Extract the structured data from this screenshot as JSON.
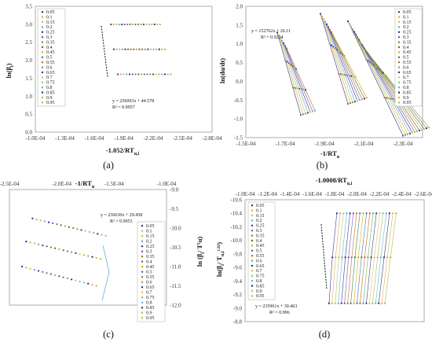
{
  "series_colors": [
    "#2b2b8f",
    "#e6a23c",
    "#a9c94a",
    "#5aa5d6",
    "#2b2b8f",
    "#7a4aa0",
    "#b36a2a",
    "#3a7d3a",
    "#d9a400",
    "#2c6ea6",
    "#c45c1c",
    "#6aa84f",
    "#1f3f7a",
    "#e8b84a",
    "#8fbf5a",
    "#5fb0d8",
    "#1e2e5e",
    "#f0a040",
    "#9abf3a"
  ],
  "panels": [
    {
      "label": "(a)",
      "xlabel": "-1.052/RT",
      "xlabel_sub": "α,i",
      "ylabel": "ln(β",
      "ylabel_sub": "i",
      "ylabel_end": ")",
      "equation": "y = 256093x + 44.578",
      "r2": "R² = 0.9957",
      "legend": [
        "0.05",
        "0.1",
        "0.15",
        "0.2",
        "0.25",
        "0.3",
        "0.35",
        "0.4",
        "0.45",
        "0.5",
        "0.55",
        "0.6",
        "0.65",
        "0.7",
        "0.75",
        "0.8",
        "0.85",
        "0.9",
        "0.95"
      ]
    },
    {
      "label": "(b)",
      "xlabel": "-1/RT",
      "xlabel_sub": "α",
      "ylabel": "ln(dα/dt)",
      "ylabel_sub": "",
      "ylabel_end": "",
      "equation": "y = 152762x + 26.11",
      "r2": "R² = 0.9224",
      "legend": [
        "0.05",
        "0.1",
        "0.15",
        "0.2",
        "0.25",
        "0.3",
        "0.35",
        "0.4",
        "0.45",
        "0.5",
        "0.55",
        "0.6",
        "0.65",
        "0.7",
        "0.75",
        "0.8",
        "0.85",
        "0.9",
        "0.95"
      ]
    },
    {
      "label": "(c)",
      "xlabel": "-1/RT",
      "xlabel_sub": "α",
      "ylabel": "ln (β",
      "ylabel_sub": "i",
      "ylabel_end": "/ T²α)",
      "equation": "y = 236630x + 29.458",
      "r2": "R² = 0.9953",
      "legend": [
        "0.05",
        "0.1",
        "0.15",
        "0.2",
        "0.25",
        "0.3",
        "0.35",
        "0.4",
        "0.45",
        "0.5",
        "0.55",
        "0.6",
        "0.65",
        "0.7",
        "0.75",
        "0.8",
        "0.85",
        "0.9",
        "0.95"
      ]
    },
    {
      "label": "(d)",
      "xlabel": "-1.0008/RT",
      "xlabel_sub": "α,i",
      "ylabel": "ln(β",
      "ylabel_sub": "i",
      "ylabel_end": "/ T",
      "ylabel_tail": "α,i",
      "ylabel_tail_sup": "1.92",
      "ylabel_close": ")",
      "equation": "y = 235961x + 30.463",
      "r2": "R² = 0.996",
      "legend": [
        "0.05",
        "0.1",
        "0.15",
        "0.2",
        "0.25",
        "0.3",
        "0.35",
        "0.4",
        "0.45",
        "0.5",
        "0.55",
        "0.6",
        "0.65",
        "0.7",
        "0.75",
        "0.8",
        "0.85",
        "0.9",
        "0.95"
      ]
    }
  ],
  "chart_data": [
    {
      "type": "scatter",
      "title": "",
      "xlabel": "-1.052/RTα,i",
      "ylabel": "ln(βi)",
      "xlim": [
        -0.0001,
        -0.00028
      ],
      "ylim": [
        0,
        3.5
      ],
      "x_ticks": [
        "-1.0E-04",
        "-1.3E-04",
        "-1.6E-04",
        "-1.9E-04",
        "-2.2E-04",
        "-2.5E-04",
        "-2.8E-04"
      ],
      "y_ticks": [
        "0.0",
        "0.5",
        "1.0",
        "1.5",
        "2.0",
        "2.5",
        "3.0",
        "3.5"
      ],
      "rows": [
        {
          "y": 2.996,
          "x_range": [
            -0.000177,
            -0.000227
          ]
        },
        {
          "y": 2.303,
          "x_range": [
            -0.00018,
            -0.000232
          ]
        },
        {
          "y": 1.609,
          "x_range": [
            -0.000184,
            -0.000238
          ]
        }
      ],
      "fit": {
        "equation": "y = 256093x + 44.578",
        "r2": 0.9957,
        "x_range": [
          -0.000177,
          -0.000184
        ]
      },
      "legend_position": "top-left"
    },
    {
      "type": "scatter",
      "title": "",
      "xlabel": "-1/RTα",
      "ylabel": "ln(dα/dt)",
      "xlim": [
        -0.00015,
        -0.00024
      ],
      "ylim": [
        -1.5,
        2.0
      ],
      "x_ticks": [
        "-1.5E-04",
        "-1.7E-04",
        "-1.9E-04",
        "-2.1E-04",
        "-2.3E-04"
      ],
      "y_ticks": [
        "-1.5",
        "-1.0",
        "-0.5",
        "0.0",
        "0.5",
        "1.0",
        "1.5",
        "2.0"
      ],
      "points_summary": {
        "x_range": [
          -0.000165,
          -0.000235
        ],
        "y_range": [
          -1.5,
          1.8
        ]
      },
      "fit": {
        "equation": "y = 152762x + 26.11",
        "r2": 0.9224
      },
      "legend_position": "top-right"
    },
    {
      "type": "scatter",
      "title": "",
      "xlabel": "-1/RTα",
      "ylabel": "ln (βi / T²α)",
      "xlim": [
        -0.00025,
        -0.0001
      ],
      "ylim": [
        -12.0,
        -9.0
      ],
      "x_ticks": [
        "-2.5E-04",
        "-2.0E-04",
        "-1.5E-04",
        "-1.0E-04"
      ],
      "y_ticks": [
        "-9.0",
        "-9.5",
        "-10.0",
        "-10.5",
        "-11.0",
        "-11.5",
        "-12.0"
      ],
      "rows": [
        {
          "y_range": [
            -9.75,
            -10.2
          ],
          "x_range": [
            -0.000228,
            -0.000158
          ]
        },
        {
          "y_range": [
            -10.35,
            -10.8
          ],
          "x_range": [
            -0.000234,
            -0.000163
          ]
        },
        {
          "y_range": [
            -11.0,
            -11.5
          ],
          "x_range": [
            -0.000238,
            -0.000167
          ]
        }
      ],
      "fit": {
        "equation": "y = 236630x + 29.458",
        "r2": 0.9953
      },
      "legend_position": "right"
    },
    {
      "type": "scatter",
      "title": "",
      "xlabel": "-1.0008/RTα,i",
      "ylabel": "ln(βi / Tα,i^1.92)",
      "xlim": [
        -0.0001,
        -0.00026
      ],
      "ylim": [
        -10.6,
        -8.8
      ],
      "x_ticks": [
        "-1.0E-04",
        "-1.2E-04",
        "-1.4E-04",
        "-1.6E-04",
        "-1.8E-04",
        "-2.0E-04",
        "-2.2E-04",
        "-2.4E-04",
        "-2.6E-04"
      ],
      "y_ticks": [
        "-8.8",
        "-9.0",
        "-9.2",
        "-9.4",
        "-9.6",
        "-9.8",
        "-10.0",
        "-10.2",
        "-10.4",
        "-10.6"
      ],
      "rows": [
        {
          "y": -9.07,
          "x_range": [
            -0.000175,
            -0.000225
          ]
        },
        {
          "y": -9.75,
          "x_range": [
            -0.000178,
            -0.00023
          ]
        },
        {
          "y": -10.4,
          "x_range": [
            -0.000182,
            -0.000235
          ]
        }
      ],
      "fit": {
        "equation": "y = 235961x + 30.463",
        "r2": 0.996
      },
      "legend_position": "top-left"
    }
  ]
}
